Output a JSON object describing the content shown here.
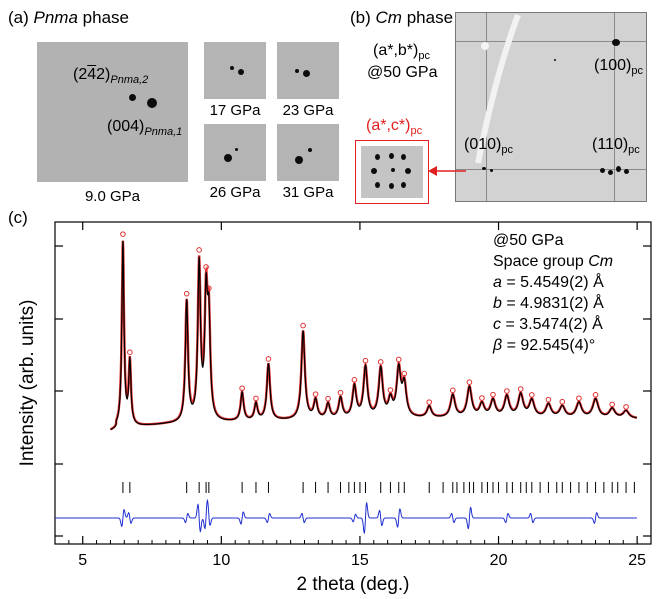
{
  "panel_a": {
    "label": "(a)",
    "phase": "Pnma",
    "phase_suffix": "phase",
    "refl_1_pre": "(2",
    "refl_1_bar": "4",
    "refl_1_post": "2)",
    "refl_1_sub": "Pnma,2",
    "refl_2": "(004)",
    "refl_2_sub": "Pnma,1",
    "pressures": [
      "9.0 GPa",
      "17 GPa",
      "23 GPa",
      "26 GPa",
      "31 GPa"
    ]
  },
  "panel_b": {
    "label": "(b)",
    "phase": "Cm",
    "phase_suffix": "phase",
    "plane": "(a*,b*)",
    "plane_sub": "pc",
    "at_pressure": "@50 GPa",
    "inset_plane": "(a*,c*)",
    "inset_sub": "pc",
    "refl_100": "(100)",
    "refl_010": "(010)",
    "refl_110": "(110)",
    "refl_sub": "pc"
  },
  "chart_data": {
    "type": "line",
    "panel_label": "(c)",
    "xlabel": "2 theta (deg.)",
    "ylabel": "Intensity (arb. units)",
    "xlim": [
      4,
      25.5
    ],
    "xticks": [
      5,
      10,
      15,
      20,
      25
    ],
    "annotations": {
      "pressure": "@50 GPa",
      "space_group_label": "Space group",
      "space_group": "Cm",
      "a_sym": "a",
      "a_val": " = 5.4549(2) Å",
      "b_sym": "b",
      "b_val": " = 4.9831(2) Å",
      "c_sym": "c",
      "c_val": " = 3.5474(2) Å",
      "beta_sym": "β",
      "beta_val": " = 92.545(4)°"
    },
    "colors": {
      "observed": "#e03030",
      "calculated": "#000000",
      "difference": "#1f2fd0",
      "ticks": "#000000"
    },
    "background": [
      [
        6.2,
        0.02
      ],
      [
        8,
        0.04
      ],
      [
        12,
        0.06
      ],
      [
        16,
        0.07
      ],
      [
        20,
        0.075
      ],
      [
        25,
        0.07
      ]
    ],
    "peaks": [
      {
        "x": 6.45,
        "h": 0.98
      },
      {
        "x": 6.7,
        "h": 0.34
      },
      {
        "x": 8.75,
        "h": 0.64
      },
      {
        "x": 9.2,
        "h": 0.83
      },
      {
        "x": 9.45,
        "h": 0.62
      },
      {
        "x": 9.55,
        "h": 0.5
      },
      {
        "x": 10.75,
        "h": 0.15
      },
      {
        "x": 11.25,
        "h": 0.09
      },
      {
        "x": 11.7,
        "h": 0.3
      },
      {
        "x": 12.95,
        "h": 0.47
      },
      {
        "x": 13.4,
        "h": 0.1
      },
      {
        "x": 13.85,
        "h": 0.08
      },
      {
        "x": 14.3,
        "h": 0.11
      },
      {
        "x": 14.8,
        "h": 0.17
      },
      {
        "x": 15.2,
        "h": 0.27
      },
      {
        "x": 15.75,
        "h": 0.26
      },
      {
        "x": 16.1,
        "h": 0.09
      },
      {
        "x": 16.4,
        "h": 0.25
      },
      {
        "x": 16.6,
        "h": 0.17
      },
      {
        "x": 17.5,
        "h": 0.06
      },
      {
        "x": 18.35,
        "h": 0.12
      },
      {
        "x": 18.95,
        "h": 0.16
      },
      {
        "x": 19.4,
        "h": 0.07
      },
      {
        "x": 19.8,
        "h": 0.09
      },
      {
        "x": 20.3,
        "h": 0.11
      },
      {
        "x": 20.8,
        "h": 0.12
      },
      {
        "x": 21.2,
        "h": 0.09
      },
      {
        "x": 21.8,
        "h": 0.07
      },
      {
        "x": 22.3,
        "h": 0.06
      },
      {
        "x": 22.9,
        "h": 0.08
      },
      {
        "x": 23.5,
        "h": 0.1
      },
      {
        "x": 24.1,
        "h": 0.05
      },
      {
        "x": 24.6,
        "h": 0.04
      }
    ],
    "reflection_ticks": [
      6.45,
      6.7,
      8.75,
      9.2,
      9.45,
      9.55,
      10.75,
      11.25,
      11.7,
      12.95,
      13.4,
      13.85,
      14.3,
      14.6,
      14.8,
      15.0,
      15.2,
      15.75,
      16.1,
      16.4,
      16.6,
      17.5,
      18.0,
      18.35,
      18.5,
      18.75,
      18.95,
      19.1,
      19.4,
      19.6,
      19.8,
      20.0,
      20.3,
      20.5,
      20.8,
      21.0,
      21.2,
      21.5,
      21.8,
      22.1,
      22.3,
      22.6,
      22.9,
      23.2,
      23.5,
      23.8,
      24.1,
      24.3,
      24.6,
      24.9
    ],
    "difference_features": [
      {
        "x": 6.45,
        "a": 0.55
      },
      {
        "x": 6.7,
        "a": -0.35
      },
      {
        "x": 8.75,
        "a": 0.3
      },
      {
        "x": 9.2,
        "a": -0.9
      },
      {
        "x": 9.45,
        "a": 0.7
      },
      {
        "x": 9.55,
        "a": -0.5
      },
      {
        "x": 10.75,
        "a": 0.4
      },
      {
        "x": 11.7,
        "a": 0.3
      },
      {
        "x": 12.95,
        "a": -0.3
      },
      {
        "x": 14.8,
        "a": 0.25
      },
      {
        "x": 15.2,
        "a": 1.0
      },
      {
        "x": 15.75,
        "a": -0.5
      },
      {
        "x": 16.4,
        "a": 0.6
      },
      {
        "x": 18.35,
        "a": -0.3
      },
      {
        "x": 18.95,
        "a": 0.7
      },
      {
        "x": 20.3,
        "a": 0.3
      },
      {
        "x": 21.2,
        "a": -0.3
      },
      {
        "x": 23.5,
        "a": 0.35
      }
    ]
  }
}
